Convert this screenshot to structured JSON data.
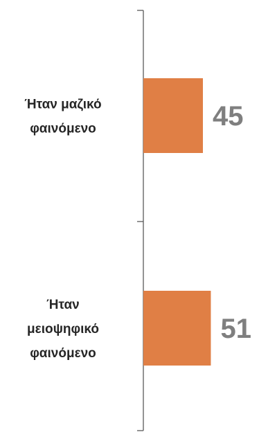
{
  "chart_data": {
    "type": "bar",
    "orientation": "horizontal",
    "categories": [
      [
        "Ήταν μαζικό",
        "φαινόμενο"
      ],
      [
        "Ήταν",
        "μειοψηφικό",
        "φαινόμενο"
      ]
    ],
    "values": [
      45,
      51
    ],
    "data_labels": [
      "45",
      "51"
    ],
    "bar_color": "#e07f45",
    "axis_color": "#595959",
    "xlim": [
      0,
      100
    ],
    "title": "",
    "xlabel": "",
    "ylabel": "",
    "grid": false,
    "legend": "none"
  }
}
